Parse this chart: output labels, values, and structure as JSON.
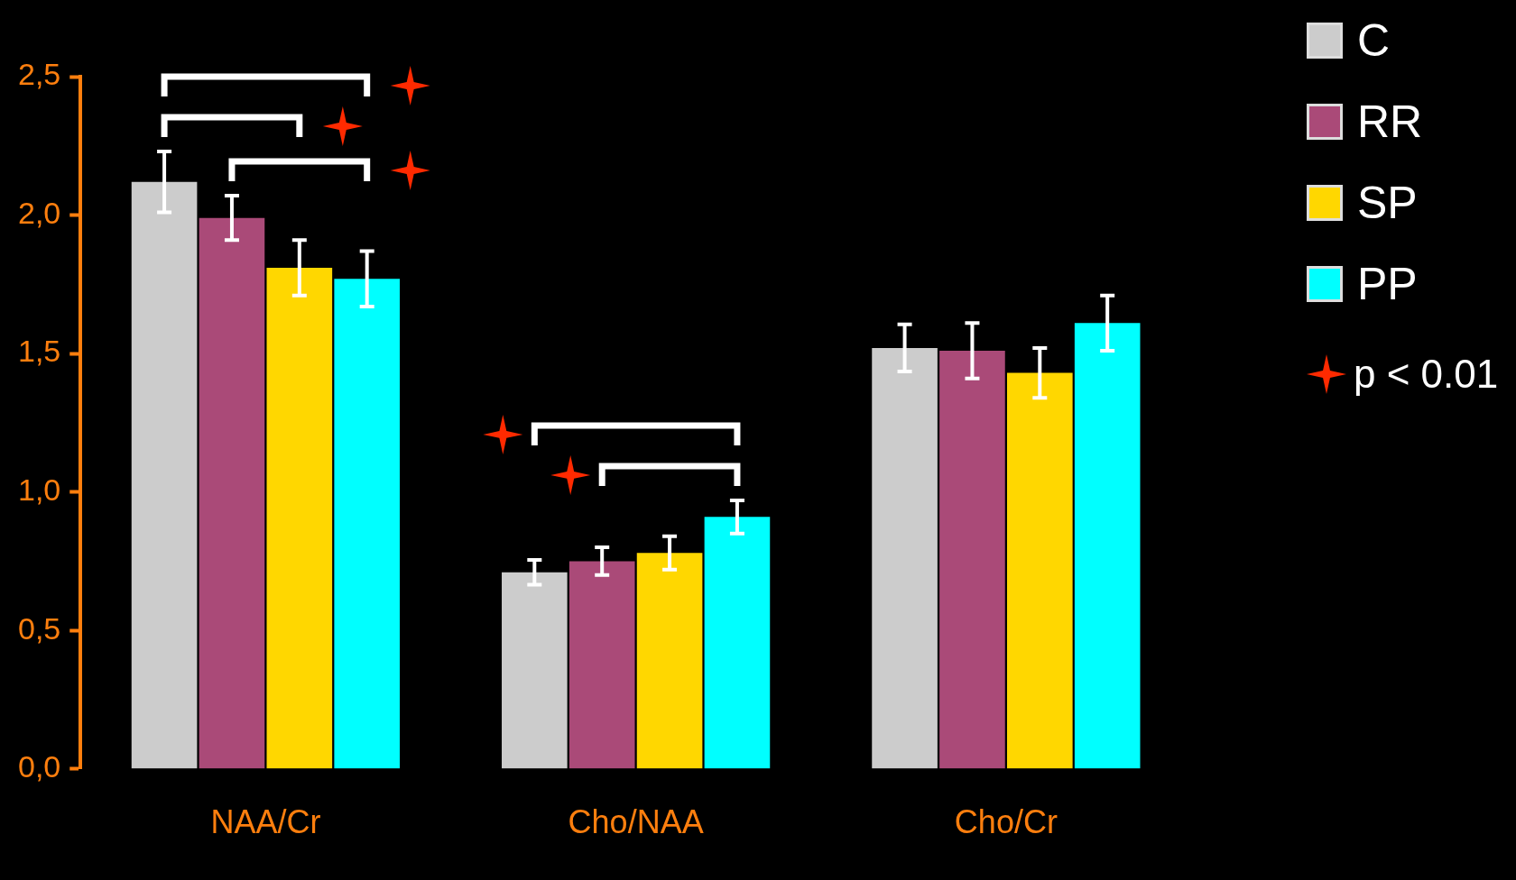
{
  "chart_data": {
    "type": "bar",
    "categories": [
      "NAA/Cr",
      "Cho/NAA",
      "Cho/Cr"
    ],
    "series": [
      {
        "name": "C",
        "color": "#cccccc",
        "values": [
          2.12,
          0.71,
          1.52
        ],
        "errors": [
          0.11,
          0.045,
          0.085
        ]
      },
      {
        "name": "RR",
        "color": "#aa4a78",
        "values": [
          1.99,
          0.75,
          1.51
        ],
        "errors": [
          0.08,
          0.05,
          0.1
        ]
      },
      {
        "name": "SP",
        "color": "#ffd700",
        "values": [
          1.81,
          0.78,
          1.43
        ],
        "errors": [
          0.1,
          0.06,
          0.09
        ]
      },
      {
        "name": "PP",
        "color": "#00ffff",
        "values": [
          1.77,
          0.91,
          1.61
        ],
        "errors": [
          0.1,
          0.06,
          0.1
        ]
      }
    ],
    "ylim": [
      0,
      2.5
    ],
    "yticks": [
      {
        "value": 0,
        "label": "0,0"
      },
      {
        "value": 0.5,
        "label": "0,5"
      },
      {
        "value": 1,
        "label": "1,0"
      },
      {
        "value": 1.5,
        "label": "1,5"
      },
      {
        "value": 2,
        "label": "2,0"
      },
      {
        "value": 2.5,
        "label": "2,5"
      }
    ],
    "grid": false,
    "legend": "top right",
    "annotations": [
      "p < 0.01"
    ]
  }
}
